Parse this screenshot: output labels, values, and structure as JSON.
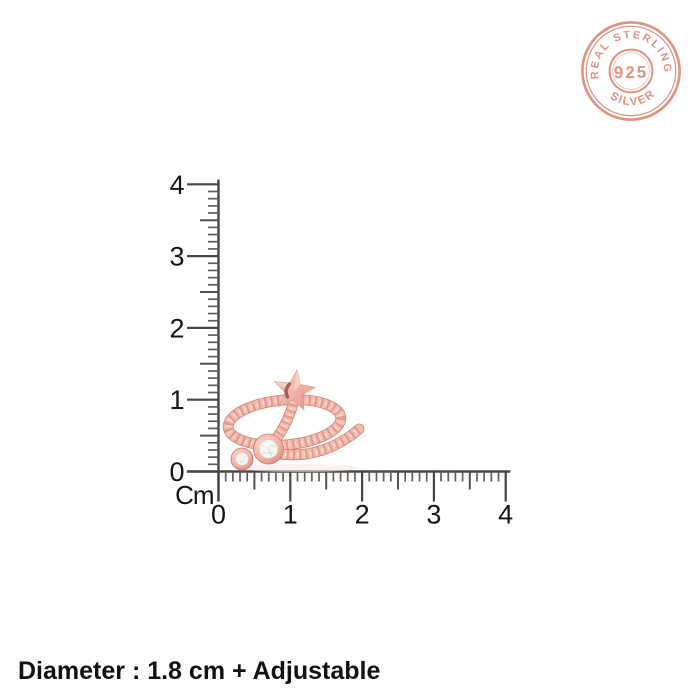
{
  "page": {
    "background": "#ffffff"
  },
  "badge": {
    "top_text": "REAL STERLING",
    "center_text": "925",
    "bottom_text": "SILVER",
    "color": "#dc8a76"
  },
  "ruler": {
    "unit_label": "Cm",
    "vertical_labels": [
      "4",
      "3",
      "2",
      "1",
      "0"
    ],
    "horizontal_labels": [
      "0",
      "1",
      "2",
      "3",
      "4"
    ],
    "line_color": "#474747",
    "text_color": "#151515"
  },
  "ring": {
    "description": "rose gold twisted-rope adjustable wrap ring with star and two bezel-set crystals",
    "colors": {
      "base": "#f4c0b4",
      "edge": "#cf8173",
      "twist": "#e19687",
      "highlight": "#ffece5",
      "star_dark": "#8e4a3e",
      "stone": "#f6f3f1"
    }
  },
  "caption": {
    "text": "Diameter : 1.8 cm + Adjustable"
  }
}
